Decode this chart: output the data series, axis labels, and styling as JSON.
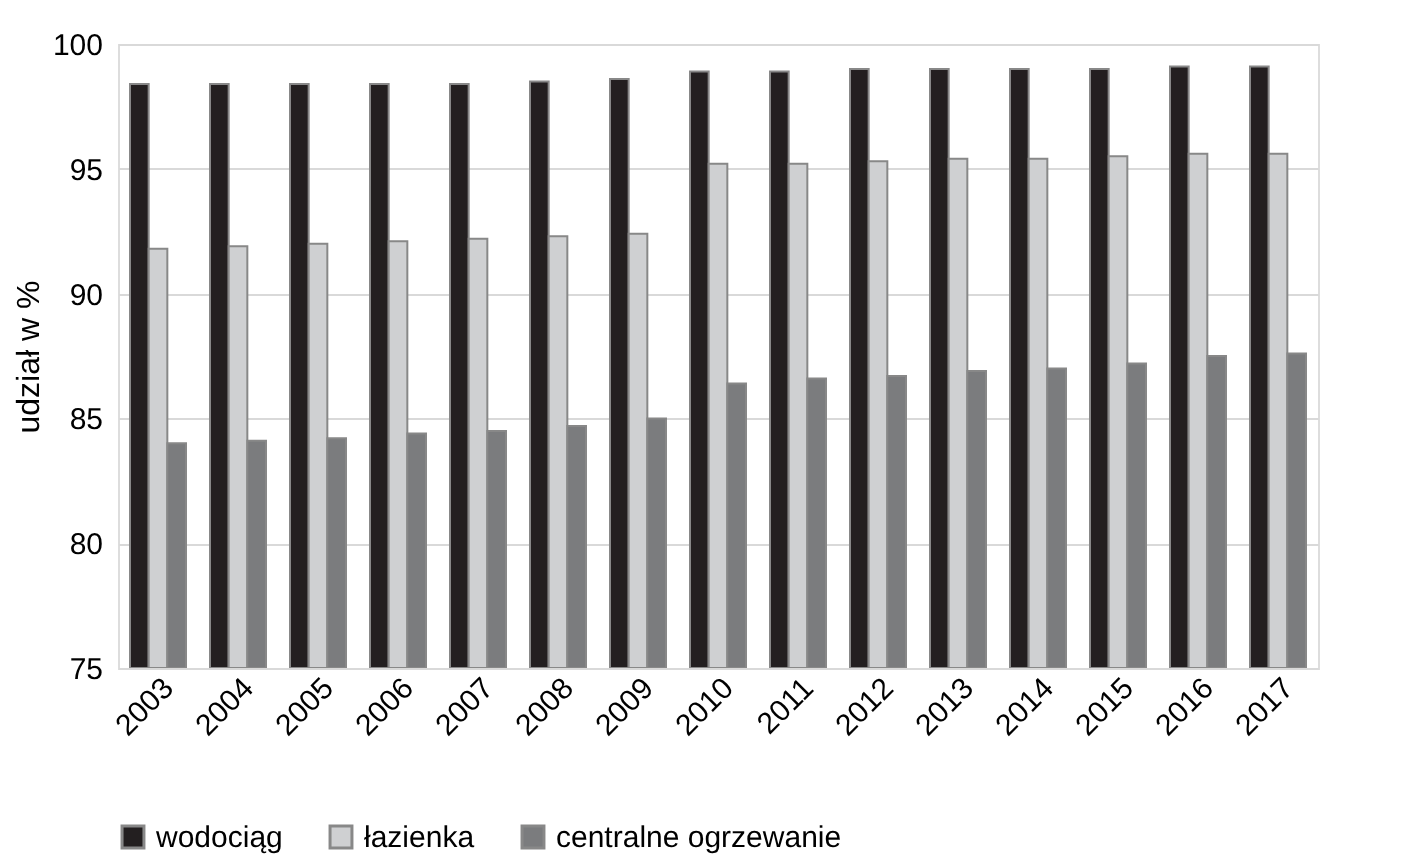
{
  "chart_data": {
    "type": "bar",
    "ylabel": "udział w %",
    "categories": [
      "2003",
      "2004",
      "2005",
      "2006",
      "2007",
      "2008",
      "2009",
      "2010",
      "2011",
      "2012",
      "2013",
      "2014",
      "2015",
      "2016",
      "2017"
    ],
    "series": [
      {
        "name": "wodociąg",
        "color": "#231f20",
        "values": [
          98.4,
          98.4,
          98.4,
          98.4,
          98.4,
          98.5,
          98.6,
          98.9,
          98.9,
          99.0,
          99.0,
          99.0,
          99.0,
          99.1,
          99.1
        ]
      },
      {
        "name": "łazienka",
        "color": "#cfd0d2",
        "values": [
          91.8,
          91.9,
          92.0,
          92.1,
          92.2,
          92.3,
          92.4,
          95.2,
          95.2,
          95.3,
          95.4,
          95.4,
          95.5,
          95.6,
          95.6
        ]
      },
      {
        "name": "centralne ogrzewanie",
        "color": "#7b7c7e",
        "values": [
          84.0,
          84.1,
          84.2,
          84.4,
          84.5,
          84.7,
          85.0,
          86.4,
          86.6,
          86.7,
          86.9,
          87.0,
          87.2,
          87.5,
          87.6
        ]
      }
    ],
    "ylim": [
      75,
      100
    ],
    "yticks": [
      75,
      80,
      85,
      90,
      95,
      100
    ],
    "grid": "y",
    "legend": "bottom"
  }
}
